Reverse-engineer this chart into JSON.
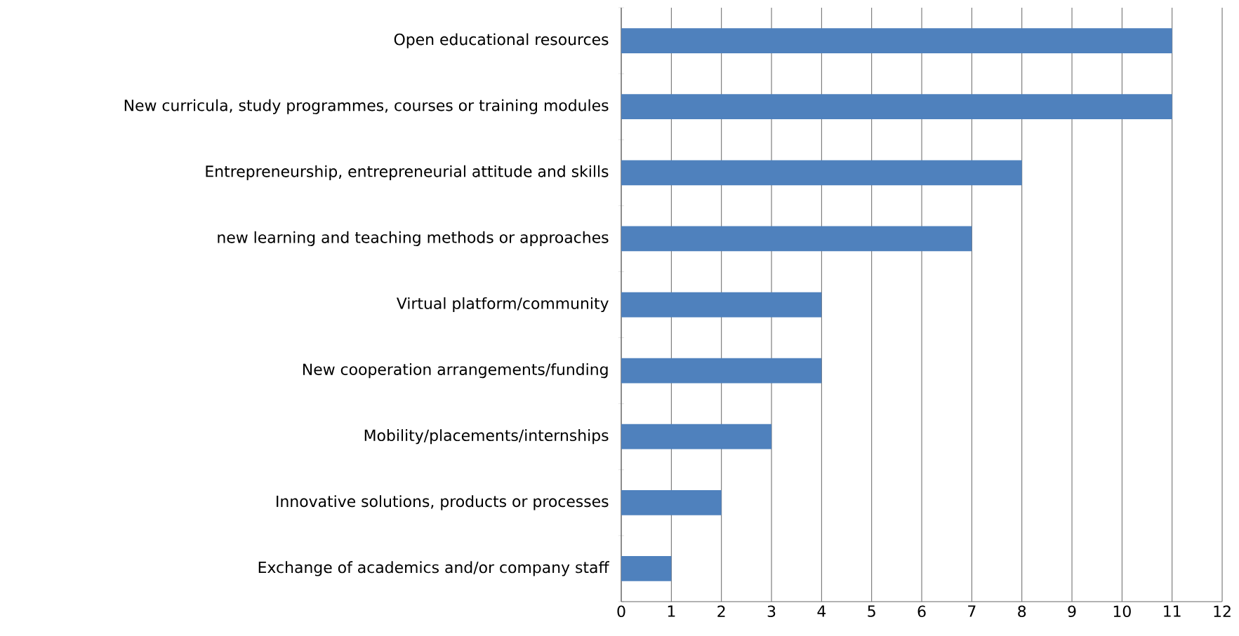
{
  "chart_data": {
    "type": "bar",
    "orientation": "horizontal",
    "categories": [
      "Open educational resources",
      "New curricula, study programmes, courses or training modules",
      "Entrepreneurship, entrepreneurial attitude and skills",
      "new learning and teaching methods or approaches",
      "Virtual platform/community",
      "New cooperation arrangements/funding",
      "Mobility/placements/internships",
      "Innovative solutions, products or processes",
      "Exchange of academics and/or company staff"
    ],
    "values": [
      11,
      11,
      8,
      7,
      4,
      4,
      3,
      2,
      1
    ],
    "color": "#4f81bd",
    "xlim": [
      0,
      12
    ],
    "xticks": [
      0,
      1,
      2,
      3,
      4,
      5,
      6,
      7,
      8,
      9,
      10,
      11,
      12
    ],
    "grid": "x"
  }
}
